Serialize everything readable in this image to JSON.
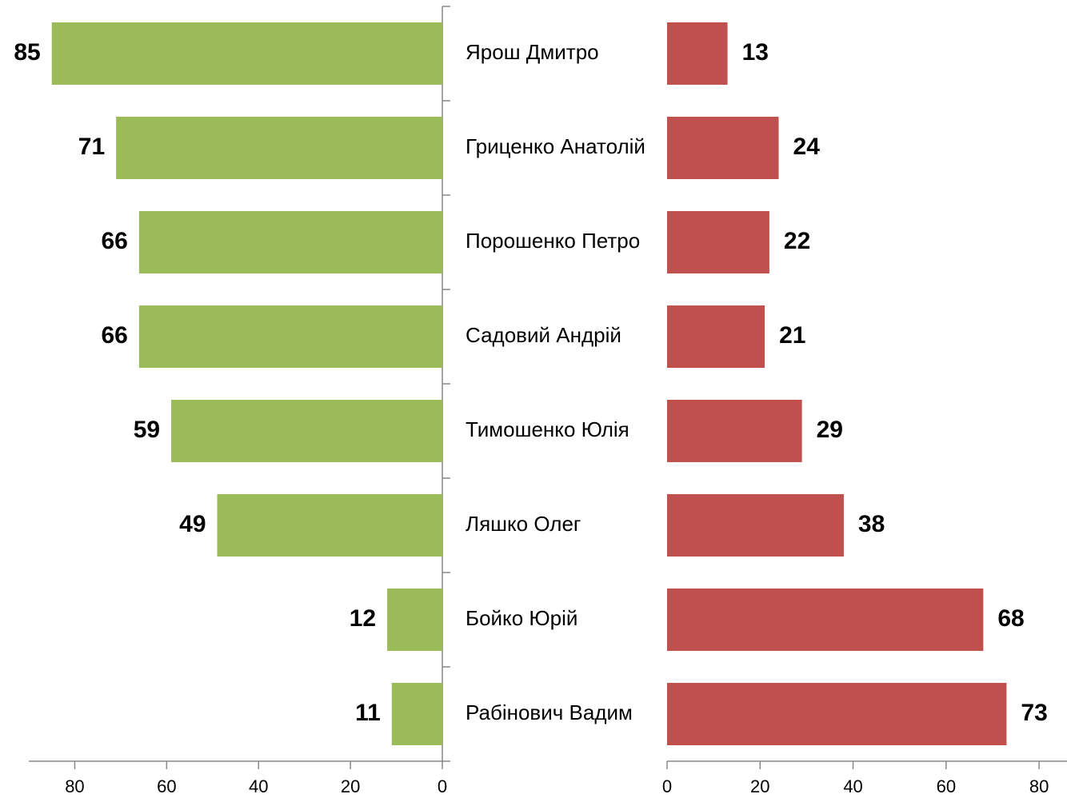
{
  "chart_data": [
    {
      "type": "bar",
      "orientation": "horizontal",
      "x_inverted": true,
      "color": "#9bbb59",
      "categories": [
        "Ярош Дмитро",
        "Гриценко Анатолій",
        "Порошенко Петро",
        "Садовий Андрій",
        "Тимошенко Юлія",
        "Ляшко Олег",
        "Бойко Юрій",
        "Рабінович Вадим"
      ],
      "values": [
        85,
        71,
        66,
        66,
        59,
        49,
        12,
        11
      ],
      "xlim": [
        0,
        90
      ],
      "xticks": [
        0,
        20,
        40,
        60,
        80
      ]
    },
    {
      "type": "bar",
      "orientation": "horizontal",
      "x_inverted": false,
      "color": "#c0504d",
      "values": [
        13,
        24,
        22,
        21,
        29,
        38,
        68,
        73
      ],
      "xlim": [
        0,
        86
      ],
      "xticks": [
        0,
        20,
        40,
        60,
        80
      ]
    }
  ]
}
